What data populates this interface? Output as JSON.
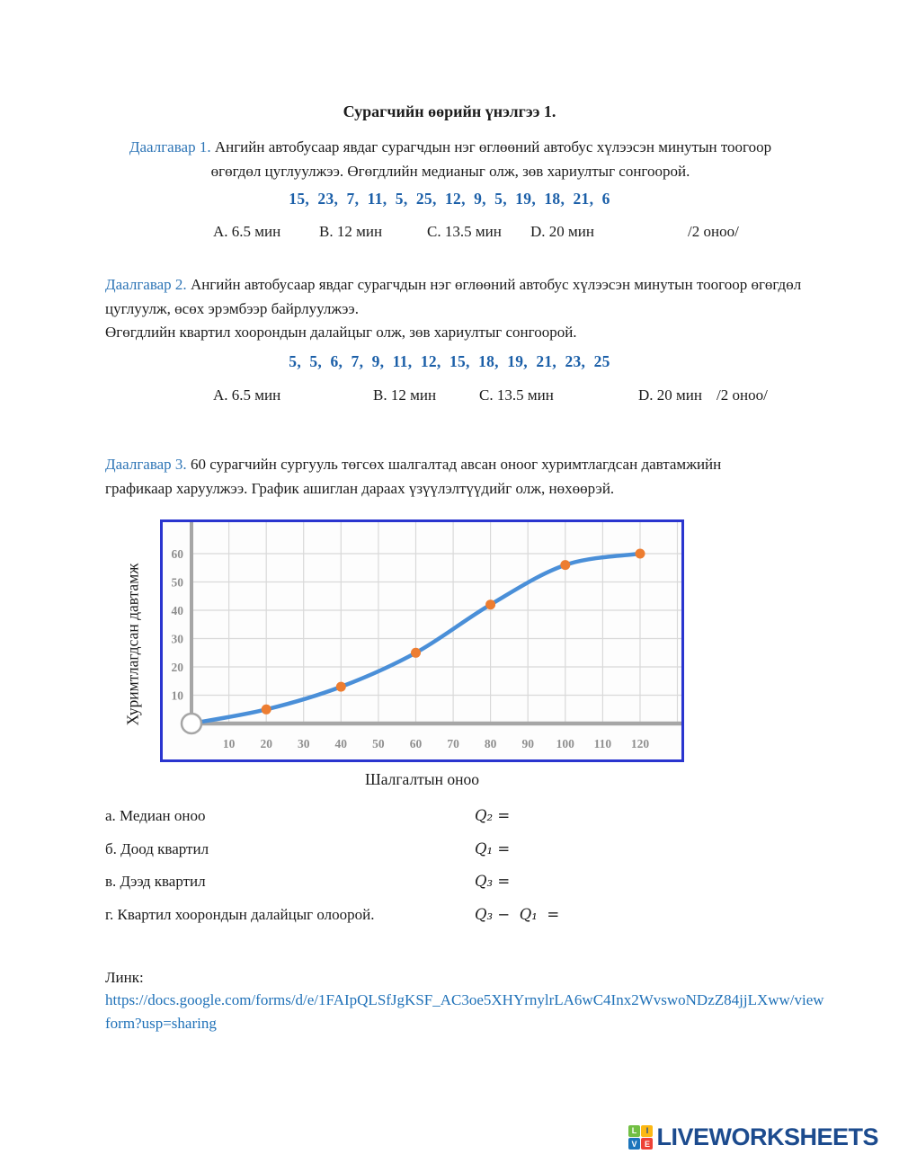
{
  "title": "Сурагчийн өөрийн үнэлгээ 1.",
  "task1": {
    "label": "Даалгавар 1.",
    "text": " Ангийн автобусаар явдаг сурагчдын нэг өглөөний автобус хүлээсэн минутын тоогоор өгөгдөл цуглуулжээ. Өгөгдлийн медианыг олж, зөв хариултыг сонгоорой.",
    "data": "15,  23,  7,  11,  5,  25,  12,  9,  5,  19,  18,  21,  6",
    "options": [
      "А. 6.5 мин",
      "В. 12 мин",
      "С. 13.5 мин",
      "D. 20 мин"
    ],
    "score": "/2 оноо/"
  },
  "task2": {
    "label": "Даалгавар 2.",
    "text1": " Ангийн автобусаар явдаг сурагчдын нэг өглөөний автобус хүлээсэн минутын тоогоор өгөгдөл цуглуулж, өсөх эрэмбээр байрлуулжээ.",
    "text2": "Өгөгдлийн квартил хоорондын далайцыг олж, зөв хариултыг сонгоорой.",
    "data": "5,  5,  6,  7,  9,  11,  12,  15,  18,  19,  21,  23,  25",
    "options": [
      "А. 6.5 мин",
      "В. 12 мин",
      "С. 13.5 мин",
      "D. 20 мин"
    ],
    "score": "/2 оноо/"
  },
  "task3": {
    "label": "Даалгавар 3.",
    "text": " 60 сурагчийн сургууль төгсөх шалгалтад авсан оноог хуримтлагдсан давтамжийн графикаар харуулжээ. График ашиглан дараах үзүүлэлтүүдийг олж, нөхөөрэй."
  },
  "chart_data": {
    "type": "line",
    "title": "",
    "xlabel": "Шалгалтын оноо",
    "ylabel": "Хуримтлагдсан давтамж",
    "x": [
      0,
      20,
      40,
      60,
      80,
      100,
      120
    ],
    "y": [
      0,
      5,
      13,
      25,
      42,
      56,
      60
    ],
    "x_ticks": [
      10,
      20,
      30,
      40,
      50,
      60,
      70,
      80,
      90,
      100,
      110,
      120
    ],
    "y_ticks": [
      10,
      20,
      30,
      40,
      50,
      60
    ],
    "x_gridlines": [
      10,
      20,
      30,
      40,
      50,
      60,
      70,
      80,
      90,
      100,
      110,
      120,
      130
    ],
    "y_gridlines": [
      10,
      20,
      30,
      40,
      50,
      60
    ],
    "xlim": [
      0,
      131
    ],
    "ylim": [
      0,
      71
    ],
    "grid": true,
    "legend": "none",
    "line_color": "#4a8fd8",
    "marker_color": "#ed7d31",
    "grid_color": "#d9d9d9",
    "axis_color": "#a6a6a6",
    "border_color": "#2a35cf"
  },
  "questions": [
    {
      "label": "а. Медиан оноо",
      "formula": "Q₂ ="
    },
    {
      "label": "б. Доод квартил",
      "formula": "Q₁ ="
    },
    {
      "label": "в. Дээд квартил",
      "formula": "Q₃ ="
    },
    {
      "label": "г. Квартил хоорондын далайцыг олоорой.",
      "formula": "Q₃ −  Q₁  ="
    }
  ],
  "link": {
    "label": "Линк:",
    "url": "https://docs.google.com/forms/d/e/1FAIpQLSfJgKSF_AC3oe5XHYrnylrLA6wC4Inx2WvswoNDzZ84jjLXww/viewform?usp=sharing"
  },
  "logo": {
    "text": "LIVEWORKSHEETS",
    "icon_letters": [
      "L",
      "I",
      "V",
      "E"
    ]
  }
}
